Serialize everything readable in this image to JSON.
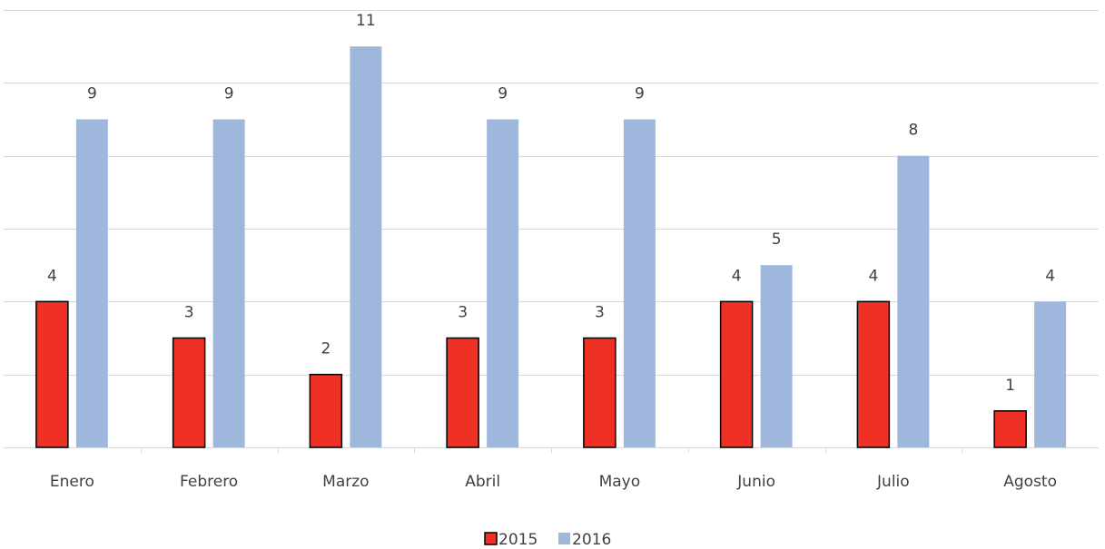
{
  "chart_data": {
    "type": "bar",
    "categories": [
      "Enero",
      "Febrero",
      "Marzo",
      "Abril",
      "Mayo",
      "Junio",
      "Julio",
      "Agosto"
    ],
    "series": [
      {
        "name": "2015",
        "color": "#ee3124",
        "values": [
          4,
          3,
          2,
          3,
          3,
          4,
          4,
          1
        ]
      },
      {
        "name": "2016",
        "color": "#a0b7dd",
        "values": [
          9,
          9,
          11,
          9,
          9,
          5,
          8,
          4
        ]
      }
    ],
    "ylim": [
      0,
      12
    ],
    "yticks": [
      0,
      2,
      4,
      6,
      8,
      10,
      12
    ],
    "grid": true,
    "legend": "bottom"
  }
}
